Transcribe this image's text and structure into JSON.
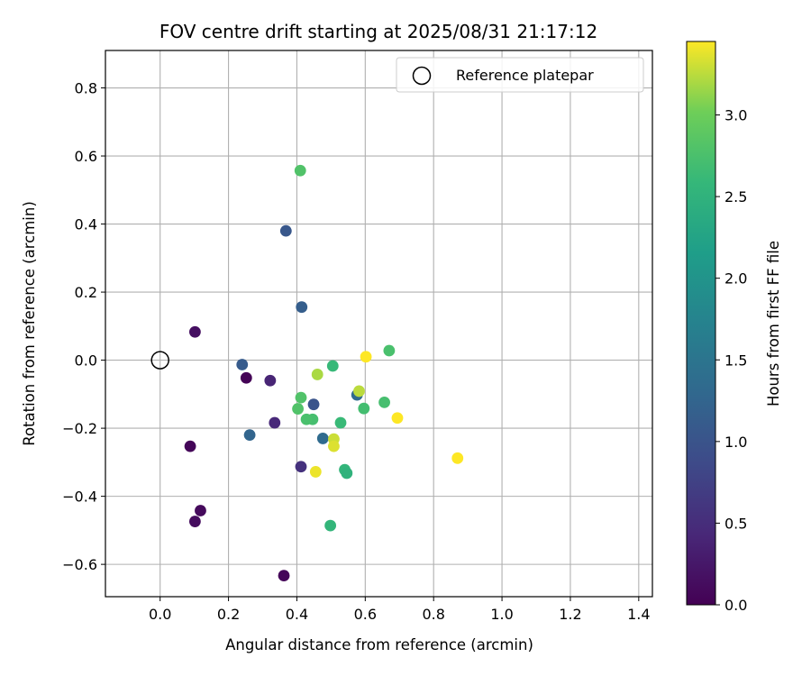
{
  "chart_data": {
    "type": "scatter",
    "title": "FOV centre drift starting at 2025/08/31 21:17:12",
    "xlabel": "Angular distance from reference (arcmin)",
    "ylabel": "Rotation from reference (arcmin)",
    "xlim": [
      -0.16,
      1.44
    ],
    "ylim": [
      -0.695,
      0.91
    ],
    "xticks": [
      0.0,
      0.2,
      0.4,
      0.6,
      0.8,
      1.0,
      1.2,
      1.4
    ],
    "yticks": [
      -0.6,
      -0.4,
      -0.2,
      0.0,
      0.2,
      0.4,
      0.6,
      0.8
    ],
    "grid": true,
    "legend": {
      "location": "top-right",
      "entries": [
        "Reference platepar"
      ]
    },
    "reference_point": {
      "x": 0.0,
      "y": 0.0
    },
    "colorbar": {
      "label": "Hours from first FF file",
      "colormap": "viridis",
      "range": [
        0.0,
        3.45
      ],
      "ticks": [
        0.0,
        0.5,
        1.0,
        1.5,
        2.0,
        2.5,
        3.0
      ]
    },
    "points": [
      {
        "x": 0.252,
        "y": -0.052,
        "c": 0.02
      },
      {
        "x": 0.088,
        "y": -0.253,
        "c": 0.05
      },
      {
        "x": 0.362,
        "y": -0.633,
        "c": 0.06
      },
      {
        "x": 0.118,
        "y": -0.442,
        "c": 0.1
      },
      {
        "x": 0.102,
        "y": -0.474,
        "c": 0.12
      },
      {
        "x": 0.102,
        "y": 0.083,
        "c": 0.15
      },
      {
        "x": 0.322,
        "y": -0.06,
        "c": 0.4
      },
      {
        "x": 0.335,
        "y": -0.184,
        "c": 0.45
      },
      {
        "x": 0.412,
        "y": -0.313,
        "c": 0.55
      },
      {
        "x": 0.449,
        "y": -0.13,
        "c": 1.0
      },
      {
        "x": 0.368,
        "y": 0.38,
        "c": 1.05
      },
      {
        "x": 0.24,
        "y": -0.013,
        "c": 1.1
      },
      {
        "x": 0.414,
        "y": 0.156,
        "c": 1.15
      },
      {
        "x": 0.262,
        "y": -0.22,
        "c": 1.25
      },
      {
        "x": 0.476,
        "y": -0.23,
        "c": 1.35
      },
      {
        "x": 0.576,
        "y": -0.102,
        "c": 1.35
      },
      {
        "x": 0.505,
        "y": -0.017,
        "c": 2.6
      },
      {
        "x": 0.528,
        "y": -0.184,
        "c": 2.62
      },
      {
        "x": 0.54,
        "y": -0.322,
        "c": 2.55
      },
      {
        "x": 0.546,
        "y": -0.332,
        "c": 2.5
      },
      {
        "x": 0.498,
        "y": -0.486,
        "c": 2.55
      },
      {
        "x": 0.446,
        "y": -0.174,
        "c": 2.72
      },
      {
        "x": 0.428,
        "y": -0.174,
        "c": 2.75
      },
      {
        "x": 0.403,
        "y": -0.143,
        "c": 2.8
      },
      {
        "x": 0.412,
        "y": -0.11,
        "c": 2.8
      },
      {
        "x": 0.41,
        "y": 0.557,
        "c": 2.8
      },
      {
        "x": 0.596,
        "y": -0.142,
        "c": 2.7
      },
      {
        "x": 0.656,
        "y": -0.124,
        "c": 2.72
      },
      {
        "x": 0.67,
        "y": 0.028,
        "c": 2.75
      },
      {
        "x": 0.46,
        "y": -0.042,
        "c": 3.2
      },
      {
        "x": 0.582,
        "y": -0.091,
        "c": 3.25
      },
      {
        "x": 0.508,
        "y": -0.232,
        "c": 3.3
      },
      {
        "x": 0.508,
        "y": -0.253,
        "c": 3.35
      },
      {
        "x": 0.455,
        "y": -0.328,
        "c": 3.4
      },
      {
        "x": 0.602,
        "y": 0.01,
        "c": 3.45
      },
      {
        "x": 0.694,
        "y": -0.17,
        "c": 3.45
      },
      {
        "x": 0.87,
        "y": -0.288,
        "c": 3.45
      }
    ]
  }
}
